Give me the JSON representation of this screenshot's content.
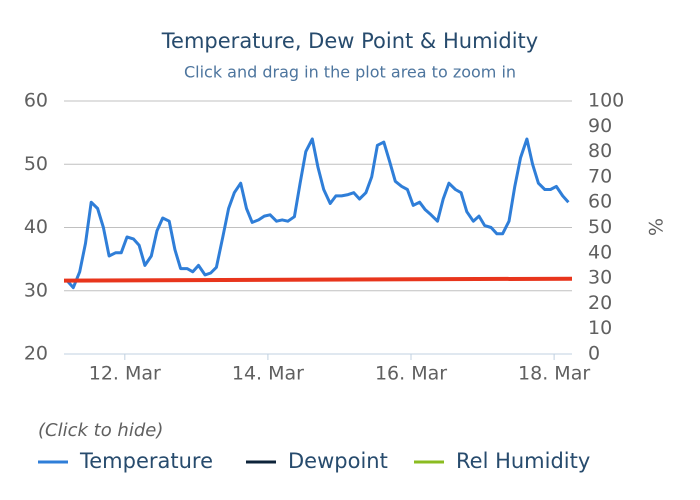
{
  "chart_data": {
    "type": "line",
    "title": "Temperature, Dew Point & Humidity",
    "subtitle": "Click and drag in the plot area to zoom in",
    "legend_title": "(Click to hide)",
    "y2_label": "%",
    "xlim": [
      11.15,
      18.25
    ],
    "xticks": [
      {
        "value": 12,
        "label": "12. Mar"
      },
      {
        "value": 14,
        "label": "14. Mar"
      },
      {
        "value": 16,
        "label": "16. Mar"
      },
      {
        "value": 18,
        "label": "18. Mar"
      }
    ],
    "ylim": [
      20,
      60
    ],
    "yticks": [
      20,
      30,
      40,
      50,
      60
    ],
    "y2lim": [
      0,
      100
    ],
    "y2ticks": [
      0,
      10,
      20,
      30,
      40,
      50,
      60,
      70,
      80,
      90,
      100
    ],
    "grid": true,
    "series": [
      {
        "name": "Temperature",
        "color": "#2f7ed8",
        "x": [
          11.2,
          11.28,
          11.37,
          11.45,
          11.53,
          11.62,
          11.7,
          11.78,
          11.87,
          11.95,
          12.03,
          12.12,
          12.2,
          12.28,
          12.37,
          12.45,
          12.53,
          12.62,
          12.7,
          12.78,
          12.87,
          12.95,
          13.03,
          13.12,
          13.2,
          13.28,
          13.37,
          13.45,
          13.53,
          13.62,
          13.7,
          13.78,
          13.87,
          13.95,
          14.03,
          14.12,
          14.2,
          14.28,
          14.37,
          14.45,
          14.53,
          14.62,
          14.7,
          14.78,
          14.87,
          14.95,
          15.03,
          15.12,
          15.2,
          15.28,
          15.37,
          15.45,
          15.53,
          15.62,
          15.7,
          15.78,
          15.87,
          15.95,
          16.03,
          16.12,
          16.2,
          16.28,
          16.37,
          16.45,
          16.53,
          16.62,
          16.7,
          16.78,
          16.87,
          16.95,
          17.03,
          17.12,
          17.2,
          17.28,
          17.37,
          17.45,
          17.53,
          17.62,
          17.7,
          17.78,
          17.87,
          17.95,
          18.03,
          18.12,
          18.2
        ],
        "values": [
          31.5,
          30.5,
          33,
          37.5,
          44,
          43,
          40,
          35.5,
          36,
          36,
          38.5,
          38.2,
          37.2,
          34,
          35.5,
          39.5,
          41.5,
          41,
          36.5,
          33.5,
          33.5,
          33,
          34,
          32.5,
          32.8,
          33.7,
          38.5,
          43,
          45.5,
          47,
          43,
          40.8,
          41.2,
          41.8,
          42,
          41,
          41.2,
          41,
          41.7,
          47,
          52,
          54,
          49.5,
          46,
          43.8,
          45,
          45,
          45.2,
          45.5,
          44.5,
          45.5,
          48,
          53,
          53.5,
          50.5,
          47.3,
          46.5,
          46,
          43.5,
          44,
          42.8,
          42,
          41,
          44.5,
          47,
          46,
          45.5,
          42.5,
          41,
          41.8,
          40.3,
          40,
          39,
          39,
          41,
          46.5,
          51,
          54,
          50,
          47,
          46,
          46,
          46.5,
          45,
          44
        ]
      },
      {
        "name": "Dewpoint",
        "color": "#0d233a",
        "x": [],
        "values": []
      },
      {
        "name": "Rel Humidity",
        "color": "#8bbc21",
        "x": [],
        "values": []
      },
      {
        "color": "#e8351c",
        "x": [
          11.15,
          18.25
        ],
        "values": [
          31.6,
          31.9
        ]
      }
    ]
  }
}
